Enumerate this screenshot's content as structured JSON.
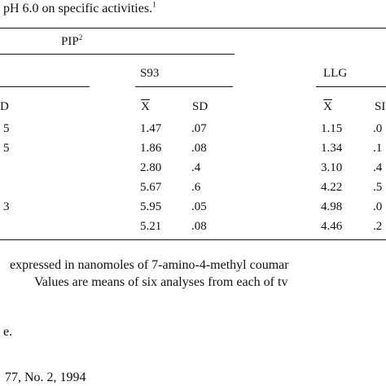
{
  "table": {
    "caption_fragment": "pH 6.0 on specific activities.",
    "caption_note_mark": "1",
    "group_header": "PIP",
    "group_header_note_mark": "2",
    "subgroups": [
      {
        "name": "S93",
        "columns": [
          "X",
          "SD"
        ],
        "rows": [
          [
            "1.47",
            ".07"
          ],
          [
            "1.86",
            ".08"
          ],
          [
            "2.80",
            ".4"
          ],
          [
            "5.67",
            ".6"
          ],
          [
            "5.95",
            ".05"
          ],
          [
            "5.21",
            ".08"
          ]
        ]
      },
      {
        "name": "LLG",
        "columns": [
          "X",
          "SI"
        ],
        "rows": [
          [
            "1.15",
            ".0"
          ],
          [
            "1.34",
            ".1"
          ],
          [
            "3.10",
            ".4"
          ],
          [
            "4.22",
            ".5"
          ],
          [
            "4.98",
            ".0"
          ],
          [
            "4.46",
            ".2"
          ]
        ]
      }
    ],
    "left_cut_header": "D",
    "left_cut_values": [
      "5",
      "5",
      "",
      "",
      "3",
      ""
    ]
  },
  "footnotes": {
    "line1": "expressed in nanomoles of 7-amino-4-methyl coumar",
    "line2": "Values are means of six analyses from each of tv",
    "line3": "e."
  },
  "citation": "77, No. 2, 1994"
}
